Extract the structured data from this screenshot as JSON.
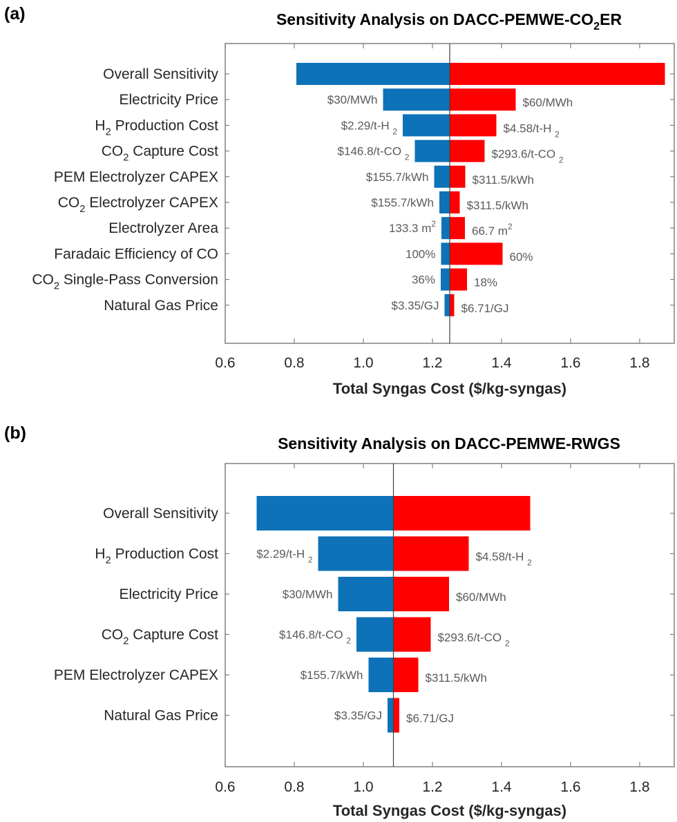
{
  "colors": {
    "low": "#0d72b8",
    "high": "#ff0000",
    "axis": "#808080",
    "center_line": "#404040"
  },
  "chart_data": [
    {
      "type": "bar",
      "subtype": "tornado",
      "panel_label": "(a)",
      "title": "Sensitivity Analysis on DACC-PEMWE-CO₂ER",
      "title_parts": [
        "Sensitivity Analysis on DACC-PEMWE-CO",
        "2",
        "ER"
      ],
      "xlabel": "Total Syngas Cost ($/kg-syngas)",
      "xlim": [
        0.6,
        1.9
      ],
      "xticks": [
        "0.6",
        "0.8",
        "1.0",
        "1.2",
        "1.4",
        "1.6",
        "1.8"
      ],
      "xtick_values": [
        0.6,
        0.8,
        1.0,
        1.2,
        1.4,
        1.6,
        1.8
      ],
      "base_value": 1.25,
      "grid": false,
      "categories": [
        {
          "label": "Overall Sensitivity",
          "label_parts": [
            "Overall Sensitivity"
          ],
          "low": 0.806,
          "high": 1.873,
          "low_label": [],
          "high_label": []
        },
        {
          "label": "Electricity Price",
          "label_parts": [
            "Electricity Price"
          ],
          "low": 1.057,
          "high": 1.441,
          "low_label": [
            "$30/MWh"
          ],
          "high_label": [
            "$60/MWh"
          ]
        },
        {
          "label": "H2 Production Cost",
          "label_parts": [
            "H",
            "2",
            " Production Cost"
          ],
          "low": 1.114,
          "high": 1.385,
          "low_label": [
            "$2.29/t-H ",
            "2"
          ],
          "high_label": [
            "$4.58/t-H ",
            "2"
          ]
        },
        {
          "label": "CO2 Capture Cost",
          "label_parts": [
            "CO",
            "2",
            " Capture Cost"
          ],
          "low": 1.149,
          "high": 1.351,
          "low_label": [
            "$146.8/t-CO ",
            "2"
          ],
          "high_label": [
            "$293.6/t-CO ",
            "2"
          ]
        },
        {
          "label": "PEM Electrolyzer CAPEX",
          "label_parts": [
            "PEM Electrolyzer CAPEX"
          ],
          "low": 1.205,
          "high": 1.295,
          "low_label": [
            "$155.7/kWh"
          ],
          "high_label": [
            "$311.5/kWh"
          ]
        },
        {
          "label": "CO2 Electrolyzer CAPEX",
          "label_parts": [
            "CO",
            "2",
            " Electrolyzer CAPEX"
          ],
          "low": 1.22,
          "high": 1.279,
          "low_label": [
            "$155.7/kWh"
          ],
          "high_label": [
            "$311.5/kWh"
          ]
        },
        {
          "label": "Electrolyzer Area",
          "label_parts": [
            "Electrolyzer Area"
          ],
          "low": 1.226,
          "high": 1.294,
          "low_label": [
            "133.3 m",
            "2",
            "sup"
          ],
          "high_label": [
            "66.7 m",
            "2",
            "sup"
          ]
        },
        {
          "label": "Faradaic Efficiency of CO",
          "label_parts": [
            "Faradaic Efficiency of CO"
          ],
          "low": 1.225,
          "high": 1.403,
          "low_label": [
            "100%"
          ],
          "high_label": [
            "60%"
          ]
        },
        {
          "label": "CO2 Single-Pass Conversion",
          "label_parts": [
            "CO",
            "2",
            " Single-Pass Conversion"
          ],
          "low": 1.224,
          "high": 1.3,
          "low_label": [
            "36%"
          ],
          "high_label": [
            "18%"
          ]
        },
        {
          "label": "Natural Gas Price",
          "label_parts": [
            "Natural Gas Price"
          ],
          "low": 1.235,
          "high": 1.263,
          "low_label": [
            "$3.35/GJ"
          ],
          "high_label": [
            "$6.71/GJ"
          ]
        }
      ]
    },
    {
      "type": "bar",
      "subtype": "tornado",
      "panel_label": "(b)",
      "title": "Sensitivity Analysis on DACC-PEMWE-RWGS",
      "title_parts": [
        "Sensitivity Analysis on DACC-PEMWE-RWGS"
      ],
      "xlabel": "Total Syngas Cost ($/kg-syngas)",
      "xlim": [
        0.6,
        1.9
      ],
      "xticks": [
        "0.6",
        "0.8",
        "1.0",
        "1.2",
        "1.4",
        "1.6",
        "1.8"
      ],
      "xtick_values": [
        0.6,
        0.8,
        1.0,
        1.2,
        1.4,
        1.6,
        1.8
      ],
      "base_value": 1.087,
      "grid": false,
      "categories": [
        {
          "label": "Overall Sensitivity",
          "label_parts": [
            "Overall Sensitivity"
          ],
          "low": 0.691,
          "high": 1.483,
          "low_label": [],
          "high_label": []
        },
        {
          "label": "H2 Production Cost",
          "label_parts": [
            "H",
            "2",
            " Production Cost"
          ],
          "low": 0.869,
          "high": 1.305,
          "low_label": [
            "$2.29/t-H ",
            "2"
          ],
          "high_label": [
            "$4.58/t-H ",
            "2"
          ]
        },
        {
          "label": "Electricity Price",
          "label_parts": [
            "Electricity Price"
          ],
          "low": 0.927,
          "high": 1.248,
          "low_label": [
            "$30/MWh"
          ],
          "high_label": [
            "$60/MWh"
          ]
        },
        {
          "label": "CO2 Capture Cost",
          "label_parts": [
            "CO",
            "2",
            " Capture Cost"
          ],
          "low": 0.98,
          "high": 1.195,
          "low_label": [
            "$146.8/t-CO ",
            "2"
          ],
          "high_label": [
            "$293.6/t-CO ",
            "2"
          ]
        },
        {
          "label": "PEM Electrolyzer CAPEX",
          "label_parts": [
            "PEM Electrolyzer CAPEX"
          ],
          "low": 1.015,
          "high": 1.159,
          "low_label": [
            "$155.7/kWh"
          ],
          "high_label": [
            "$311.5/kWh"
          ]
        },
        {
          "label": "Natural Gas Price",
          "label_parts": [
            "Natural Gas Price"
          ],
          "low": 1.07,
          "high": 1.104,
          "low_label": [
            "$3.35/GJ"
          ],
          "high_label": [
            "$6.71/GJ"
          ]
        }
      ]
    }
  ]
}
